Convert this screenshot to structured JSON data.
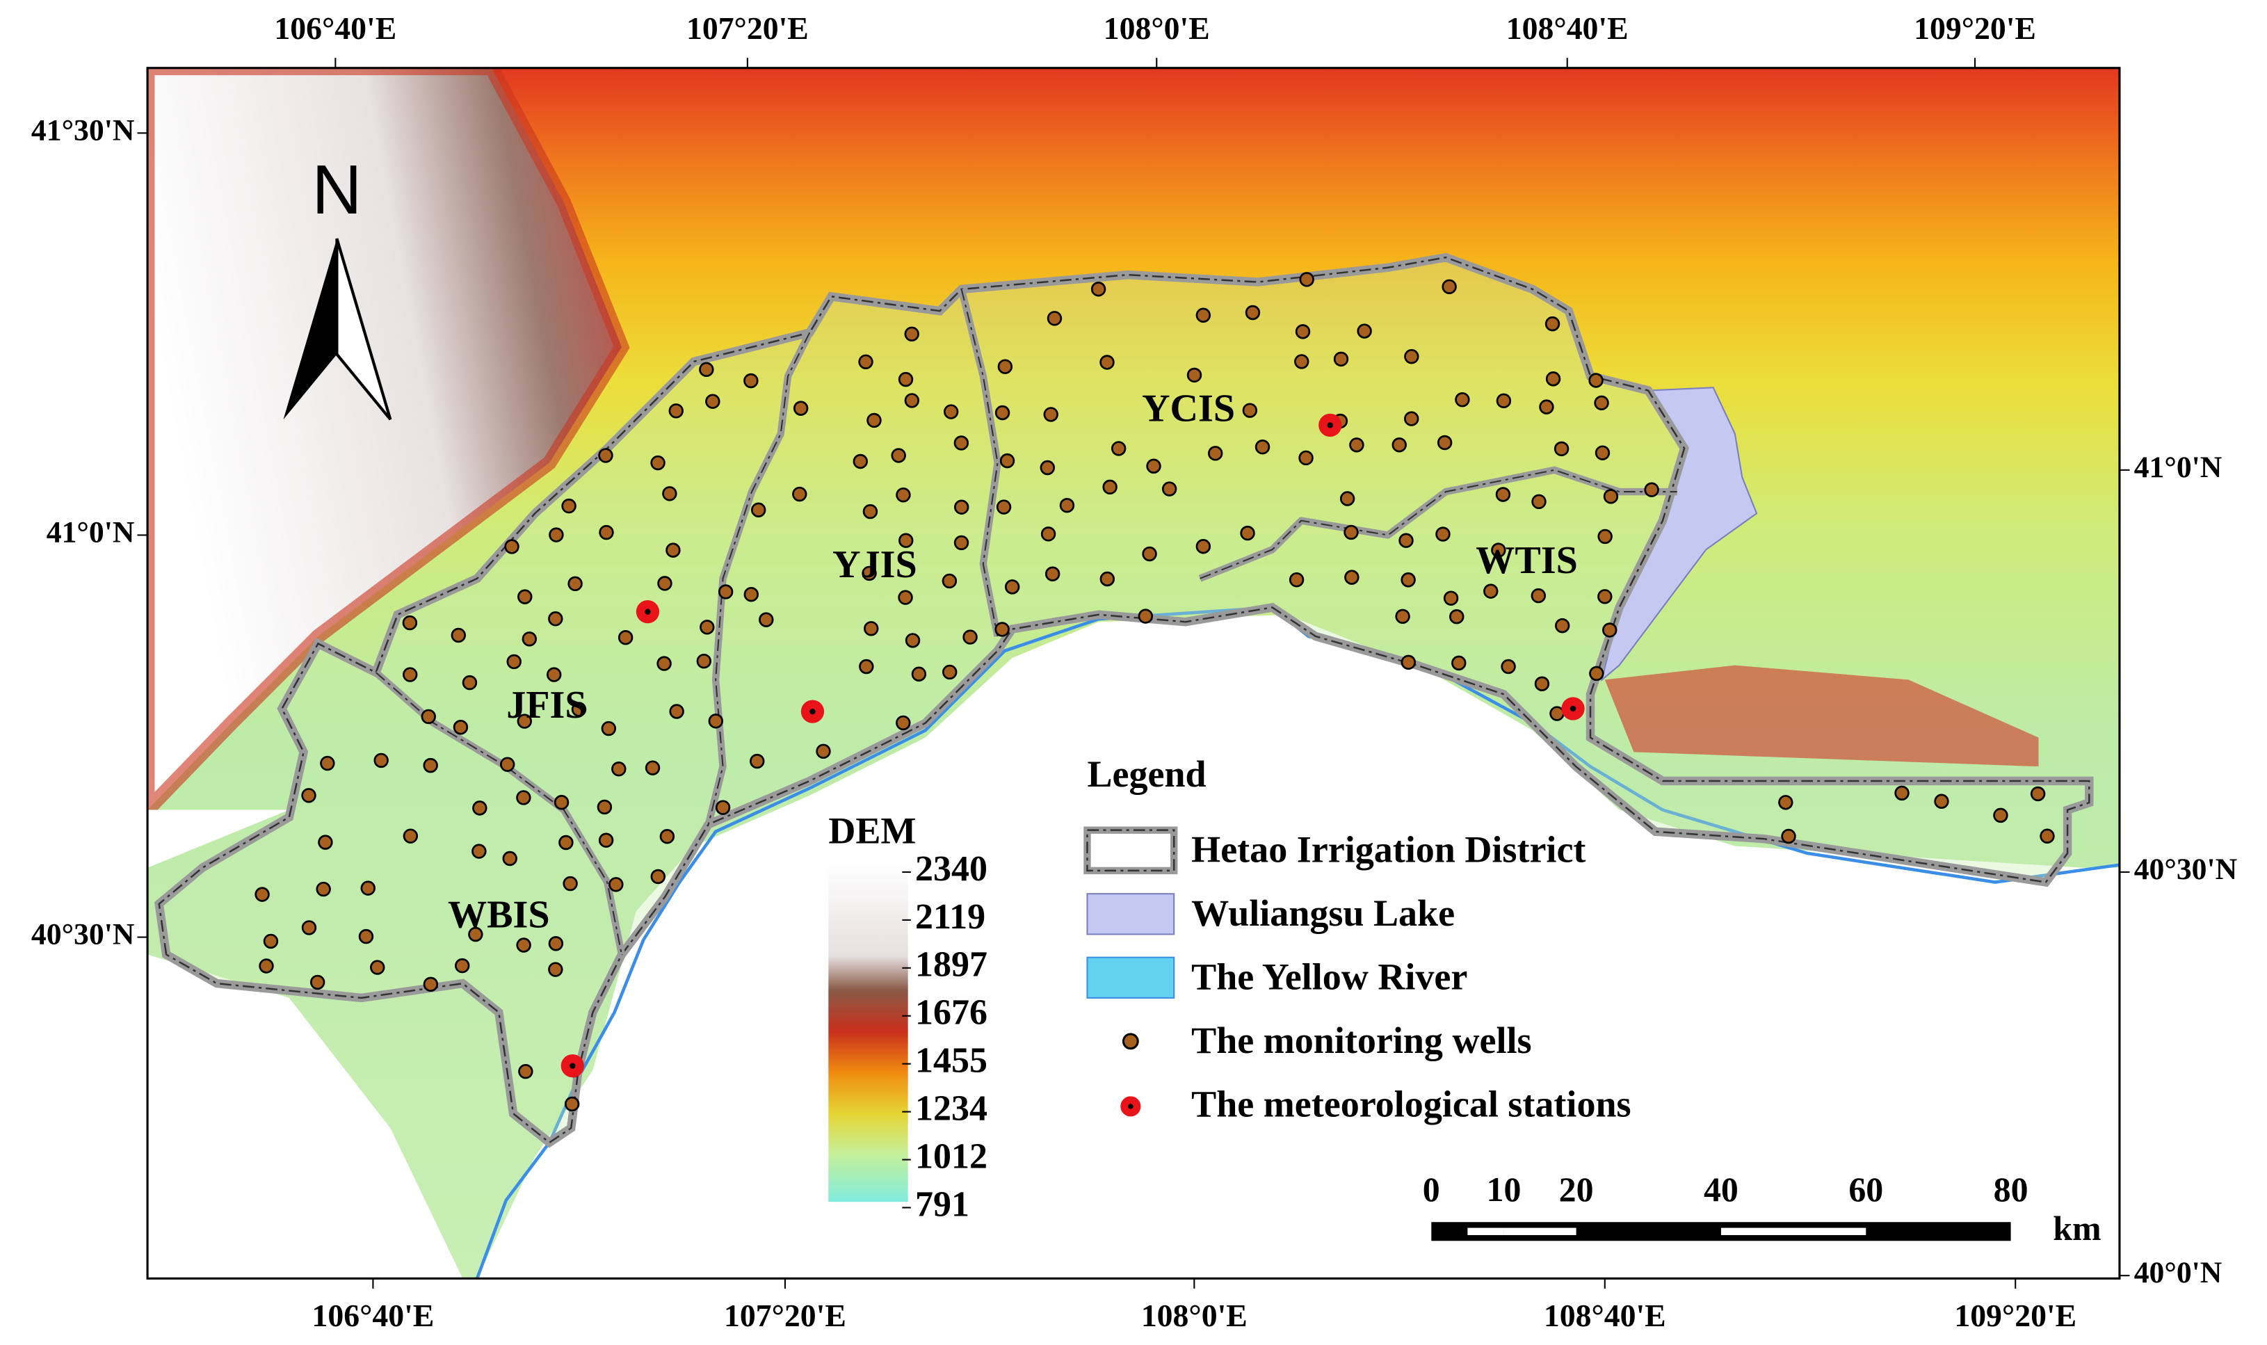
{
  "map": {
    "lon_labels_top": [
      "106°40'E",
      "107°20'E",
      "108°0'E",
      "108°40'E",
      "109°20'E"
    ],
    "lon_labels_bottom": [
      "106°40'E",
      "107°20'E",
      "108°0'E",
      "108°40'E",
      "109°20'E"
    ],
    "lat_labels_left": [
      "41°30'N",
      "41°0'N",
      "40°30'N"
    ],
    "lat_labels_right": [
      "41°0'N",
      "40°30'N",
      "40°0'N"
    ],
    "north": "N",
    "regions": [
      "YCIS",
      "YJIS",
      "JFIS",
      "WTIS",
      "WBIS"
    ],
    "legend": {
      "title": "Legend",
      "items": [
        "Hetao Irrigation District",
        "Wuliangsu Lake",
        "The Yellow River",
        "The monitoring wells",
        "The meteorological stations"
      ]
    },
    "dem": {
      "title": "DEM",
      "values": [
        2340,
        2119,
        1897,
        1676,
        1455,
        1234,
        1012,
        791
      ]
    },
    "scale_bar": {
      "ticks": [
        0,
        10,
        20,
        40,
        60,
        80
      ],
      "unit": "km"
    }
  }
}
